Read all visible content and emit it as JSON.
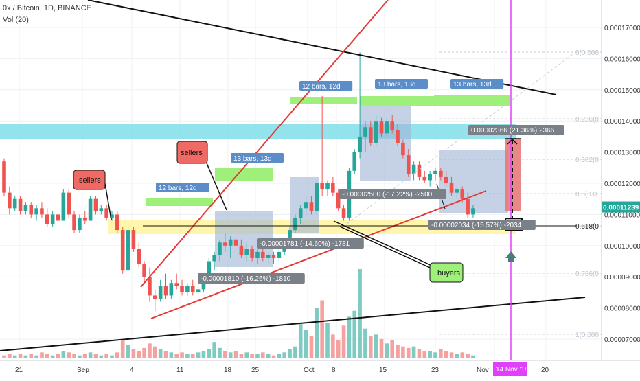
{
  "header": {
    "symbol_line": "0x / Bitcoin, 1D, BINANCE",
    "volume_line": "Vol (20)"
  },
  "chart_data": {
    "type": "candlestick",
    "y_axis": {
      "ticks": [
        "0.00017000",
        "0.00016000",
        "0.00015000",
        "0.00014000",
        "0.00013000",
        "0.00012000",
        "0.00011000",
        "0.00010000",
        "0.00009000",
        "0.00008000",
        "0.00007000"
      ],
      "current_price": "0.00011239",
      "current_price_color": "#26a69a"
    },
    "x_axis": {
      "ticks": [
        "21",
        "Sep",
        "4",
        "11",
        "18",
        "25",
        "Oct",
        "8",
        "15",
        "23",
        "Nov",
        "13",
        "20"
      ],
      "cursor_label": "14 Nov '18",
      "cursor_color": "#e040fb"
    },
    "fib_levels": [
      {
        "label": "0(0.000"
      },
      {
        "label": "0.236(0"
      },
      {
        "label": "0.382(0"
      },
      {
        "label": "0.5(0.0"
      },
      {
        "label": "0.618(0"
      },
      {
        "label": "0.786(0"
      },
      {
        "label": "1(0.000"
      }
    ],
    "bar_range_labels": [
      "12 bars, 12d",
      "13 bars, 13d",
      "12 bars, 12d",
      "13 bars, 13d",
      "13 bars, 13d"
    ],
    "measure_labels": [
      "-0.00001810 (-16.26%) -1810",
      "-0.00001781 (-14.60%) -1781",
      "-0.00002500 (-17.22%) -2500",
      "-0.00002034 (-15.57%) -2034",
      "0.00002366 (21.36%) 2366"
    ],
    "callouts": {
      "sellers_left": "sellers",
      "sellers_mid": "sellers",
      "buyers": "buyers"
    },
    "colors": {
      "up": "#26a69a",
      "down": "#ef5350",
      "vol_up": "#7fcbc2",
      "vol_down": "#f4a19f",
      "resistance": "#e53935",
      "cyan_zone": "#80deea",
      "yellow_zone": "#fff59d",
      "green_zone": "#9ef07a",
      "blue_box": "#9fb4d6"
    },
    "candles": [
      [
        0.000127,
        0.000128,
        0.000116,
        0.000117
      ],
      [
        0.000117,
        0.000119,
        0.00011,
        0.000112
      ],
      [
        0.000112,
        0.000116,
        0.000111,
        0.000115
      ],
      [
        0.000115,
        0.000116,
        0.00011,
        0.000111
      ],
      [
        0.000111,
        0.000114,
        0.00011,
        0.000113
      ],
      [
        0.000113,
        0.000114,
        0.000109,
        0.00011
      ],
      [
        0.00011,
        0.000113,
        0.000108,
        0.000112
      ],
      [
        0.000112,
        0.000114,
        0.000109,
        0.00011
      ],
      [
        0.00011,
        0.000112,
        0.000106,
        0.000107
      ],
      [
        0.000107,
        0.000111,
        0.000106,
        0.00011
      ],
      [
        0.00011,
        0.000113,
        0.000107,
        0.000108
      ],
      [
        0.000108,
        0.000118,
        0.000108,
        0.000117
      ],
      [
        0.000117,
        0.000118,
        0.000109,
        0.00011
      ],
      [
        0.00011,
        0.000111,
        0.000104,
        0.000105
      ],
      [
        0.000105,
        0.00011,
        0.000104,
        0.000109
      ],
      [
        0.000109,
        0.000111,
        0.000107,
        0.000108
      ],
      [
        0.000108,
        0.000116,
        0.000108,
        0.000115
      ],
      [
        0.000115,
        0.000116,
        0.00011,
        0.000111
      ],
      [
        0.000111,
        0.000113,
        0.00011,
        0.000112
      ],
      [
        0.000112,
        0.000113,
        0.000108,
        0.000109
      ],
      [
        0.000109,
        0.000111,
        0.000108,
        0.00011
      ],
      [
        0.00011,
        0.000111,
        0.000104,
        0.000105
      ],
      [
        0.000105,
        0.000106,
        9.1e-05,
        9.2e-05
      ],
      [
        9.2e-05,
        0.000106,
        9.1e-05,
        0.000105
      ],
      [
        0.000105,
        0.000106,
        9.8e-05,
        9.9e-05
      ],
      [
        9.9e-05,
        0.000101,
        9.3e-05,
        9.4e-05
      ],
      [
        9.4e-05,
        9.5e-05,
        8.8e-05,
        9e-05
      ],
      [
        9e-05,
        9.3e-05,
        8.2e-05,
        8.4e-05
      ],
      [
        8.4e-05,
        8.6e-05,
        7.9e-05,
        8.3e-05
      ],
      [
        8.3e-05,
        8.9e-05,
        8.2e-05,
        8.7e-05
      ],
      [
        8.7e-05,
        9.1e-05,
        8.3e-05,
        8.4e-05
      ],
      [
        8.4e-05,
        8.9e-05,
        8.3e-05,
        8.8e-05
      ],
      [
        8.8e-05,
        9.1e-05,
        8.6e-05,
        8.7e-05
      ],
      [
        8.7e-05,
        8.9e-05,
        8.4e-05,
        8.5e-05
      ],
      [
        8.5e-05,
        8.8e-05,
        8.4e-05,
        8.7e-05
      ],
      [
        8.7e-05,
        8.9e-05,
        8.4e-05,
        8.5e-05
      ],
      [
        8.5e-05,
        8.7e-05,
        8.4e-05,
        8.6e-05
      ],
      [
        8.6e-05,
        9.1e-05,
        8.5e-05,
        9e-05
      ],
      [
        9e-05,
        9.6e-05,
        8.9e-05,
        9.5e-05
      ],
      [
        9.5e-05,
        9.8e-05,
        9.2e-05,
        9.7e-05
      ],
      [
        9.7e-05,
        0.000102,
        9.5e-05,
        0.000101
      ],
      [
        0.000101,
        0.000104,
        9.8e-05,
        0.0001
      ],
      [
        0.0001,
        0.000103,
        9.6e-05,
        0.000102
      ],
      [
        0.000102,
        0.000104,
        9.9e-05,
        0.0001
      ],
      [
        0.0001,
        0.000102,
        9.6e-05,
        9.7e-05
      ],
      [
        9.7e-05,
        0.000101,
        9.5e-05,
        9.9e-05
      ],
      [
        9.9e-05,
        0.0001,
        9.5e-05,
        9.6e-05
      ],
      [
        9.6e-05,
        9.9e-05,
        9.4e-05,
        9.8e-05
      ],
      [
        9.8e-05,
        9.9e-05,
        9.5e-05,
        9.6e-05
      ],
      [
        9.6e-05,
        9.8e-05,
        9.4e-05,
        9.7e-05
      ],
      [
        9.7e-05,
        9.8e-05,
        9.4e-05,
        9.6e-05
      ],
      [
        9.6e-05,
        9.9e-05,
        9.5e-05,
        9.8e-05
      ],
      [
        9.8e-05,
        0.000101,
        9.7e-05,
        0.0001
      ],
      [
        0.0001,
        0.000106,
        9.9e-05,
        0.000105
      ],
      [
        0.000105,
        0.00011,
        0.000104,
        0.000109
      ],
      [
        0.000109,
        0.000113,
        0.000107,
        0.000112
      ],
      [
        0.000112,
        0.000116,
        0.00011,
        0.000114
      ],
      [
        0.000114,
        0.000116,
        0.00011,
        0.000111
      ],
      [
        0.000111,
        0.000121,
        0.00011,
        0.00012
      ],
      [
        0.00012,
        0.000148,
        0.000116,
        0.000118
      ],
      [
        0.000118,
        0.000121,
        0.000116,
        0.00012
      ],
      [
        0.00012,
        0.000122,
        0.000116,
        0.000117
      ],
      [
        0.000117,
        0.000118,
        0.000111,
        0.000112
      ],
      [
        0.000112,
        0.000113,
        0.000108,
        0.000109
      ],
      [
        0.000109,
        0.000125,
        0.000108,
        0.000124
      ],
      [
        0.000124,
        0.000131,
        0.000123,
        0.00013
      ],
      [
        0.00013,
        0.000162,
        0.000128,
        0.000135
      ],
      [
        0.000135,
        0.00014,
        0.00013,
        0.000138
      ],
      [
        0.000138,
        0.00014,
        0.000132,
        0.000133
      ],
      [
        0.000133,
        0.000142,
        0.000132,
        0.00014
      ],
      [
        0.00014,
        0.000141,
        0.000135,
        0.000136
      ],
      [
        0.000136,
        0.000141,
        0.000135,
        0.00014
      ],
      [
        0.00014,
        0.000142,
        0.000136,
        0.000137
      ],
      [
        0.000137,
        0.000139,
        0.000132,
        0.000133
      ],
      [
        0.000133,
        0.000134,
        0.000128,
        0.000129
      ],
      [
        0.000129,
        0.000131,
        0.000122,
        0.000123
      ],
      [
        0.000123,
        0.000127,
        0.000121,
        0.000126
      ],
      [
        0.000126,
        0.000127,
        0.000121,
        0.000122
      ],
      [
        0.000122,
        0.000124,
        0.00012,
        0.000121
      ],
      [
        0.000121,
        0.000124,
        0.000119,
        0.000123
      ],
      [
        0.000123,
        0.000125,
        0.000121,
        0.000124
      ],
      [
        0.000124,
        0.000125,
        0.000121,
        0.000122
      ],
      [
        0.000122,
        0.000124,
        0.000119,
        0.00012
      ],
      [
        0.00012,
        0.000122,
        0.000116,
        0.000117
      ],
      [
        0.000117,
        0.000119,
        0.000115,
        0.000118
      ],
      [
        0.000118,
        0.000119,
        0.000114,
        0.000115
      ],
      [
        0.000115,
        0.000117,
        0.000109,
        0.00011
      ],
      [
        0.00011,
        0.000113,
        0.000109,
        0.000112
      ]
    ],
    "volumes": [
      0.2,
      0.3,
      0.2,
      0.3,
      0.2,
      0.3,
      0.2,
      0.4,
      0.3,
      0.2,
      0.3,
      0.5,
      0.4,
      0.3,
      0.2,
      0.3,
      0.4,
      0.3,
      0.2,
      0.3,
      0.2,
      0.4,
      1.2,
      0.9,
      0.6,
      0.5,
      0.7,
      1.0,
      0.8,
      0.6,
      0.5,
      0.4,
      0.3,
      0.4,
      0.3,
      0.3,
      0.4,
      0.5,
      0.6,
      1.1,
      0.7,
      0.5,
      0.4,
      0.5,
      0.3,
      0.4,
      0.3,
      0.3,
      0.4,
      0.3,
      0.2,
      0.3,
      0.4,
      0.6,
      0.8,
      2.3,
      1.9,
      1.5,
      3.4,
      3.9,
      2.4,
      1.6,
      1.2,
      2.2,
      2.8,
      3.2,
      6.0,
      2.0,
      1.5,
      1.6,
      1.3,
      1.0,
      1.2,
      0.9,
      0.8,
      0.7,
      0.8,
      0.6,
      0.5,
      0.5,
      0.4,
      0.6,
      0.5,
      0.4,
      0.3,
      0.4,
      0.3,
      0.2
    ]
  }
}
